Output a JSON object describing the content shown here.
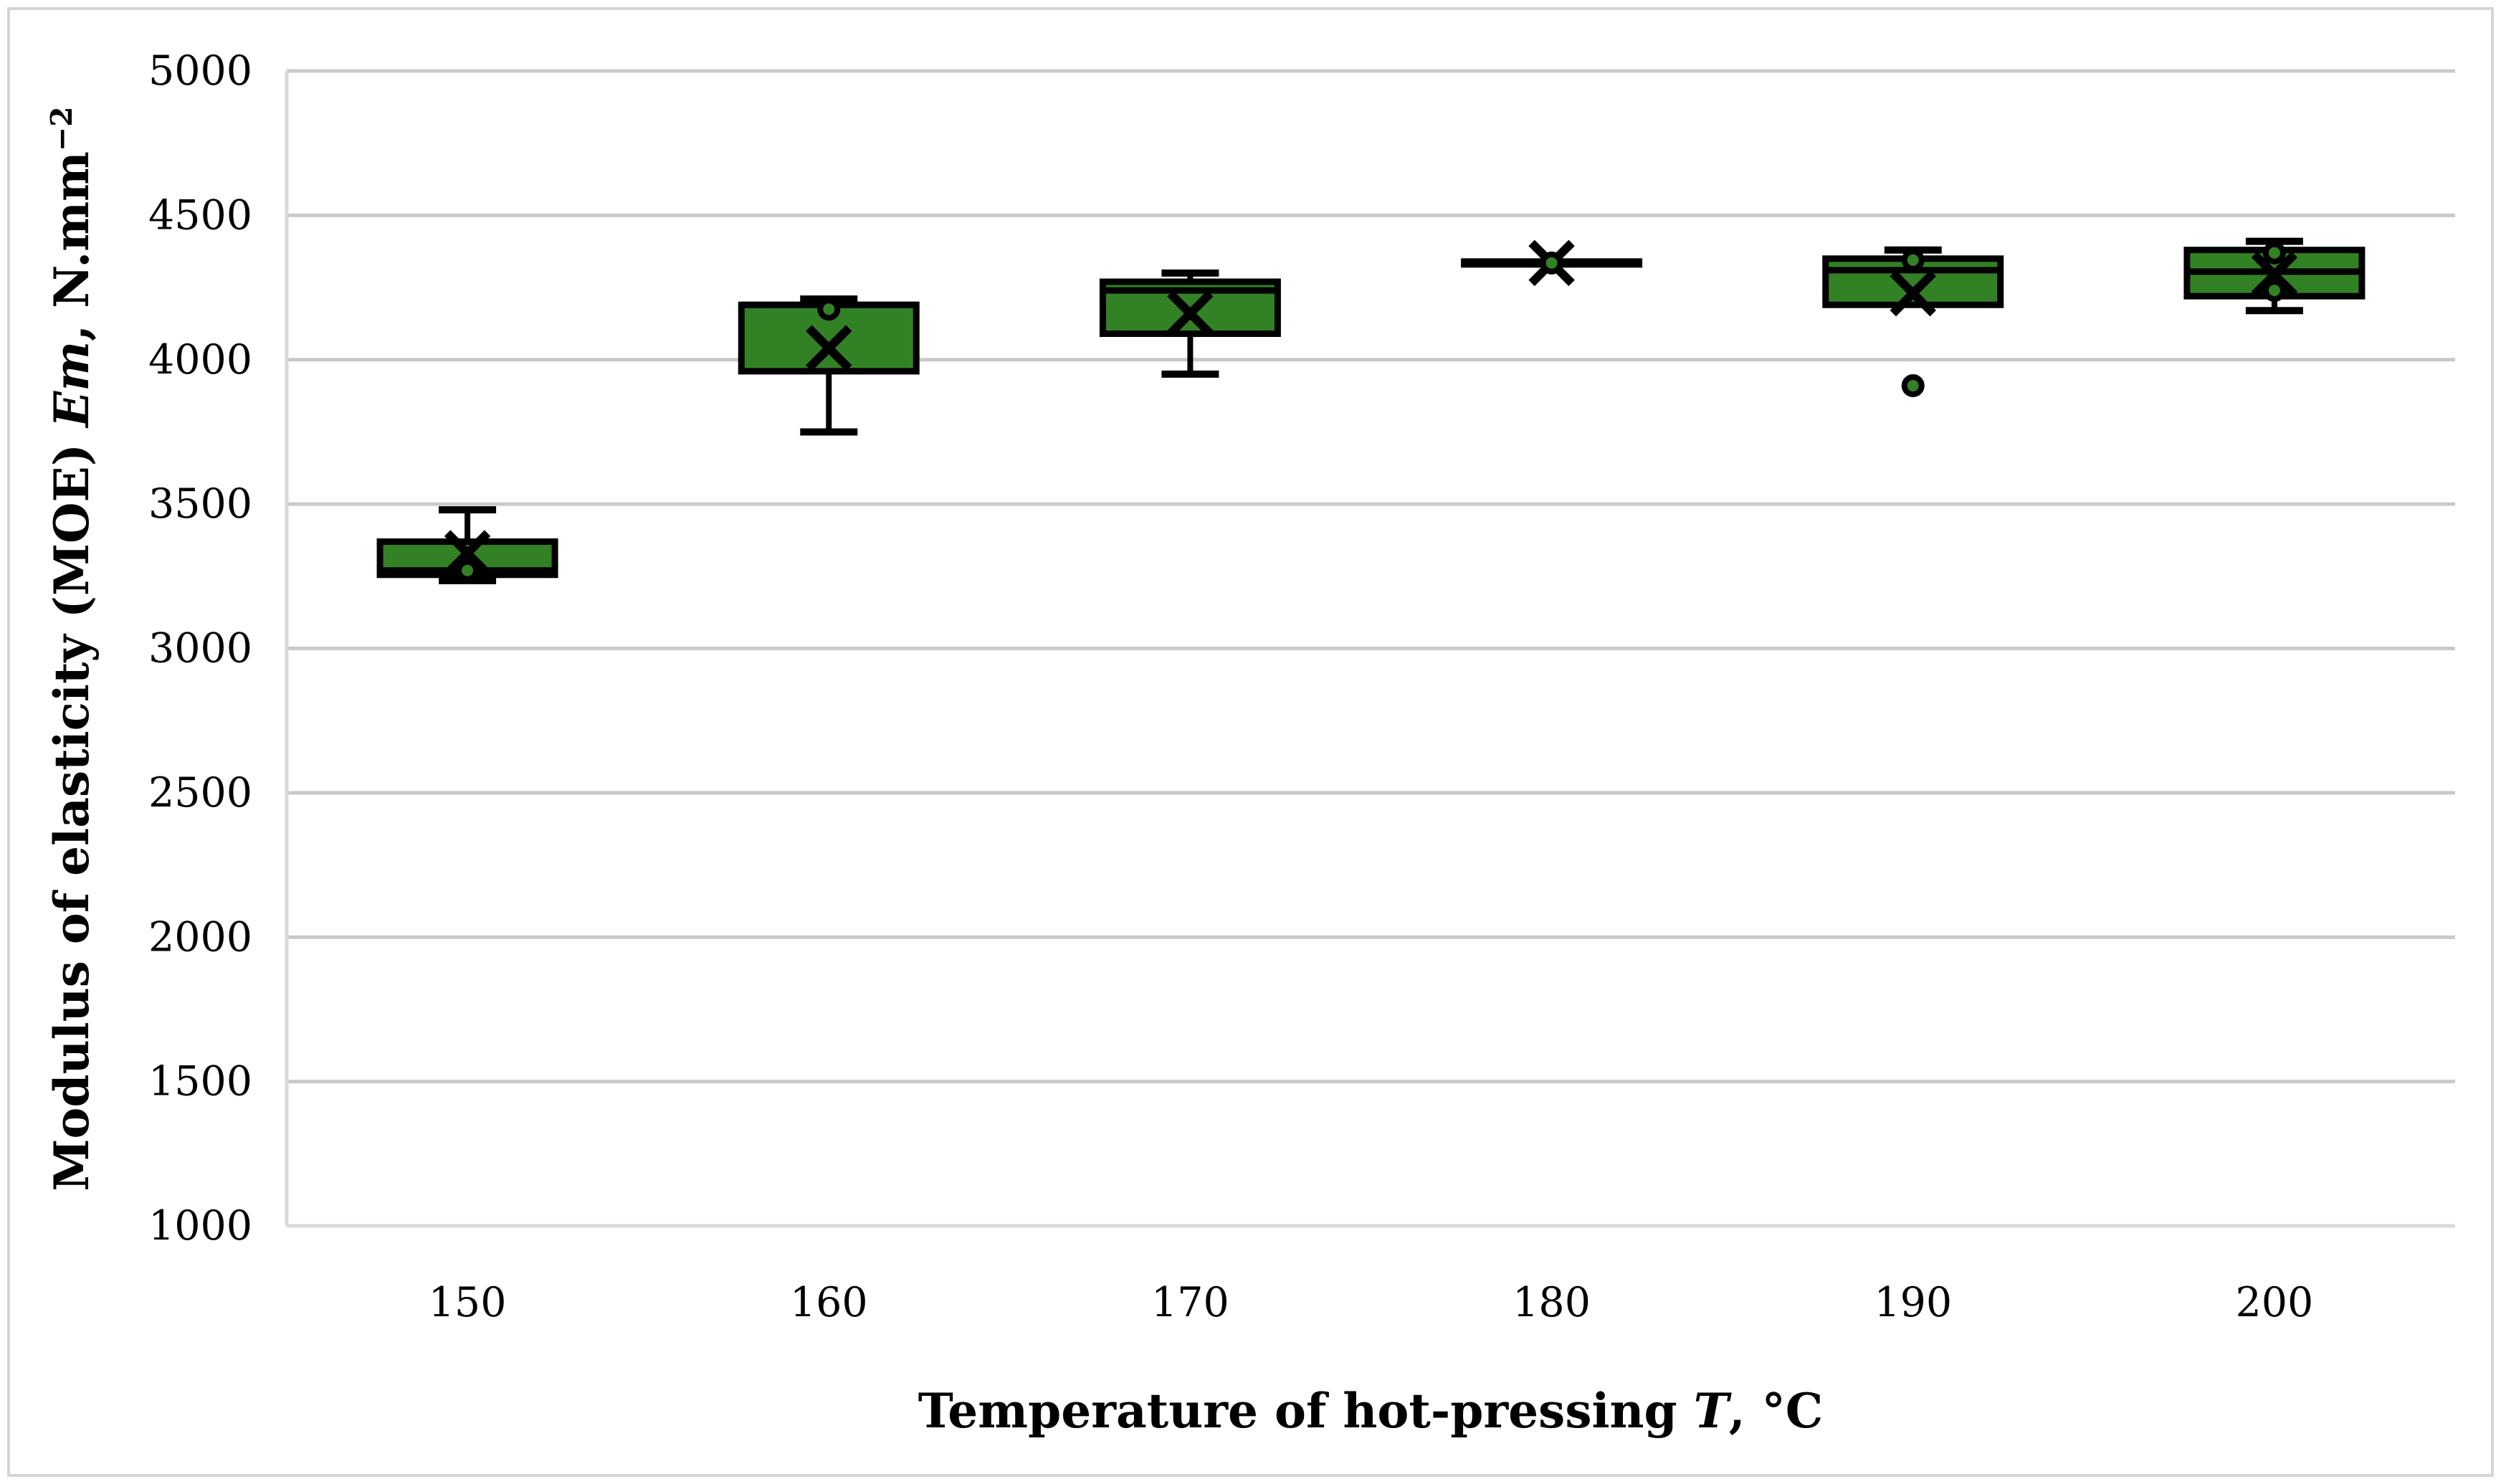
{
  "figure": {
    "background": "#ffffff",
    "border_color": "#d5d5d5"
  },
  "chart_data": {
    "type": "boxplot",
    "title": "",
    "xlabel": {
      "pre": "Temperature of hot-pressing ",
      "italic": "T",
      "post": ", °C"
    },
    "ylabel": {
      "pre": "Modulus of elasticity (MOE) ",
      "italic": "Em",
      "post": ", N.mm",
      "sup": "−2"
    },
    "categories": [
      "150",
      "160",
      "170",
      "180",
      "190",
      "200"
    ],
    "ylim": [
      1000,
      5000
    ],
    "y_ticks": [
      5000,
      4500,
      4000,
      3500,
      3000,
      2500,
      2000,
      1500,
      1000
    ],
    "grid": true,
    "legend": "none",
    "series": [
      {
        "category": "150",
        "min": 3235,
        "q1": 3255,
        "median": 3270,
        "q3": 3370,
        "max": 3480,
        "mean": 3330,
        "points": [
          3270
        ]
      },
      {
        "category": "160",
        "min": 3750,
        "q1": 3960,
        "median": 4190,
        "q3": 4190,
        "max": 4210,
        "mean": 4040,
        "points": [
          4175
        ]
      },
      {
        "category": "170",
        "min": 3950,
        "q1": 4090,
        "median": 4240,
        "q3": 4270,
        "max": 4300,
        "mean": 4160,
        "points": []
      },
      {
        "category": "180",
        "min": 4330,
        "q1": 4330,
        "median": 4335,
        "q3": 4340,
        "max": 4340,
        "mean": 4335,
        "points": [
          4335
        ]
      },
      {
        "category": "190",
        "min": 4190,
        "q1": 4190,
        "median": 4310,
        "q3": 4350,
        "max": 4380,
        "mean": 4230,
        "points": [
          4345,
          3910
        ]
      },
      {
        "category": "200",
        "min": 4170,
        "q1": 4220,
        "median": 4305,
        "q3": 4380,
        "max": 4410,
        "mean": 4295,
        "points": [
          4370,
          4240
        ]
      }
    ],
    "colors": {
      "box_fill": "#338125",
      "box_border": "#000000",
      "mean_marker": "#000000",
      "gridline": "#c9c9c9",
      "axis_line": "#d9d9d9",
      "text": "#000000"
    }
  }
}
